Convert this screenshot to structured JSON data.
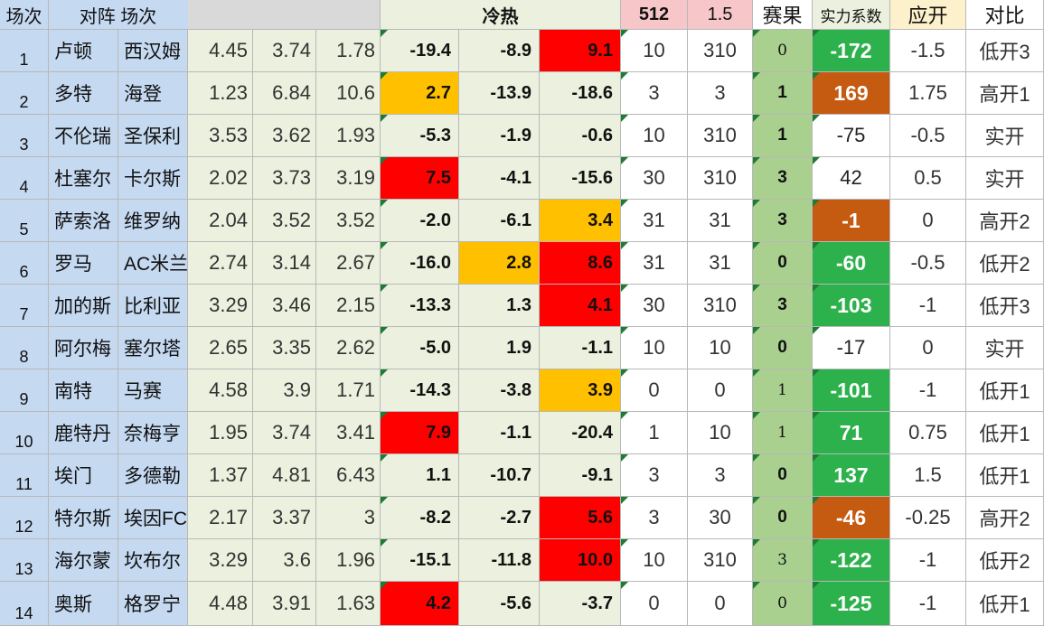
{
  "header": {
    "idx": "场次",
    "match": "对阵 场次",
    "heat": "冷热",
    "c512": "512",
    "c15": "1.5",
    "result": "赛果",
    "power": "实力系数",
    "should": "应开",
    "compare": "对比"
  },
  "colors": {
    "blue": "#c5d9f1",
    "green_light": "#ebf1de",
    "gray": "#d9d9d9",
    "pink": "#f7c6c8",
    "header_yellow": "#fdf1cc",
    "red": "#ff0000",
    "orange": "#ffc000",
    "result_green": "#a9d08e",
    "power_green": "#2db14c",
    "power_brown": "#c55a11"
  },
  "rows": [
    {
      "idx": "1",
      "home": "卢顿",
      "away": "西汉姆",
      "o1": "4.45",
      "o2": "3.74",
      "o3": "1.78",
      "h1": "-19.4",
      "h2": "-8.9",
      "h3": "9.1",
      "h1c": "none",
      "h2c": "none",
      "h3c": "red",
      "v512": "10",
      "v15": "310",
      "res": "0",
      "resSerif": true,
      "power": "-172",
      "pc": "green",
      "should": "-1.5",
      "cmp": "低开3"
    },
    {
      "idx": "2",
      "home": "多特",
      "away": "海登",
      "o1": "1.23",
      "o2": "6.84",
      "o3": "10.6",
      "h1": "2.7",
      "h2": "-13.9",
      "h3": "-18.6",
      "h1c": "orange",
      "h2c": "none",
      "h3c": "none",
      "v512": "3",
      "v15": "3",
      "res": "1",
      "resSerif": false,
      "power": "169",
      "pc": "brown",
      "should": "1.75",
      "cmp": "高开1"
    },
    {
      "idx": "3",
      "home": "不伦瑞",
      "away": "圣保利",
      "o1": "3.53",
      "o2": "3.62",
      "o3": "1.93",
      "h1": "-5.3",
      "h2": "-1.9",
      "h3": "-0.6",
      "h1c": "none",
      "h2c": "none",
      "h3c": "none",
      "v512": "10",
      "v15": "310",
      "res": "1",
      "resSerif": false,
      "power": "-75",
      "pc": "none",
      "should": "-0.5",
      "cmp": "实开"
    },
    {
      "idx": "4",
      "home": "杜塞尔",
      "away": "卡尔斯",
      "o1": "2.02",
      "o2": "3.73",
      "o3": "3.19",
      "h1": "7.5",
      "h2": "-4.1",
      "h3": "-15.6",
      "h1c": "red",
      "h2c": "none",
      "h3c": "none",
      "v512": "30",
      "v15": "310",
      "res": "3",
      "resSerif": false,
      "power": "42",
      "pc": "none",
      "should": "0.5",
      "cmp": "实开"
    },
    {
      "idx": "5",
      "home": "萨索洛",
      "away": "维罗纳",
      "o1": "2.04",
      "o2": "3.52",
      "o3": "3.52",
      "h1": "-2.0",
      "h2": "-6.1",
      "h3": "3.4",
      "h1c": "none",
      "h2c": "none",
      "h3c": "orange",
      "v512": "31",
      "v15": "31",
      "res": "3",
      "resSerif": false,
      "power": "-1",
      "pc": "brown",
      "should": "0",
      "cmp": "高开2"
    },
    {
      "idx": "6",
      "home": "罗马",
      "away": "AC米兰",
      "o1": "2.74",
      "o2": "3.14",
      "o3": "2.67",
      "h1": "-16.0",
      "h2": "2.8",
      "h3": "8.6",
      "h1c": "none",
      "h2c": "orange",
      "h3c": "red",
      "v512": "31",
      "v15": "31",
      "res": "0",
      "resSerif": false,
      "power": "-60",
      "pc": "green",
      "should": "-0.5",
      "cmp": "低开2"
    },
    {
      "idx": "7",
      "home": "加的斯",
      "away": "比利亚",
      "o1": "3.29",
      "o2": "3.46",
      "o3": "2.15",
      "h1": "-13.3",
      "h2": "1.3",
      "h3": "4.1",
      "h1c": "none",
      "h2c": "none",
      "h3c": "red",
      "v512": "30",
      "v15": "310",
      "res": "3",
      "resSerif": false,
      "power": "-103",
      "pc": "green",
      "should": "-1",
      "cmp": "低开3"
    },
    {
      "idx": "8",
      "home": "阿尔梅",
      "away": "塞尔塔",
      "o1": "2.65",
      "o2": "3.35",
      "o3": "2.62",
      "h1": "-5.0",
      "h2": "1.9",
      "h3": "-1.1",
      "h1c": "none",
      "h2c": "none",
      "h3c": "none",
      "v512": "10",
      "v15": "10",
      "res": "0",
      "resSerif": false,
      "power": "-17",
      "pc": "none",
      "should": "0",
      "cmp": "实开"
    },
    {
      "idx": "9",
      "home": "南特",
      "away": "马赛",
      "o1": "4.58",
      "o2": "3.9",
      "o3": "1.71",
      "h1": "-14.3",
      "h2": "-3.8",
      "h3": "3.9",
      "h1c": "none",
      "h2c": "none",
      "h3c": "orange",
      "v512": "0",
      "v15": "0",
      "res": "1",
      "resSerif": true,
      "power": "-101",
      "pc": "green",
      "should": "-1",
      "cmp": "低开1"
    },
    {
      "idx": "10",
      "home": "鹿特丹",
      "away": "奈梅亨",
      "o1": "1.95",
      "o2": "3.74",
      "o3": "3.41",
      "h1": "7.9",
      "h2": "-1.1",
      "h3": "-20.4",
      "h1c": "red",
      "h2c": "none",
      "h3c": "none",
      "v512": "1",
      "v15": "10",
      "res": "1",
      "resSerif": true,
      "power": "71",
      "pc": "green",
      "should": "0.75",
      "cmp": "低开1"
    },
    {
      "idx": "11",
      "home": "埃门",
      "away": "多德勒",
      "o1": "1.37",
      "o2": "4.81",
      "o3": "6.43",
      "h1": "1.1",
      "h2": "-10.7",
      "h3": "-9.1",
      "h1c": "none",
      "h2c": "none",
      "h3c": "none",
      "v512": "3",
      "v15": "3",
      "res": "0",
      "resSerif": false,
      "power": "137",
      "pc": "green",
      "should": "1.5",
      "cmp": "低开1"
    },
    {
      "idx": "12",
      "home": "特尔斯",
      "away": "埃因FC",
      "o1": "2.17",
      "o2": "3.37",
      "o3": "3",
      "h1": "-8.2",
      "h2": "-2.7",
      "h3": "5.6",
      "h1c": "none",
      "h2c": "none",
      "h3c": "red",
      "v512": "3",
      "v15": "30",
      "res": "0",
      "resSerif": false,
      "power": "-46",
      "pc": "brown",
      "should": "-0.25",
      "cmp": "高开2"
    },
    {
      "idx": "13",
      "home": "海尔蒙",
      "away": "坎布尔",
      "o1": "3.29",
      "o2": "3.6",
      "o3": "1.96",
      "h1": "-15.1",
      "h2": "-11.8",
      "h3": "10.0",
      "h1c": "none",
      "h2c": "none",
      "h3c": "red",
      "v512": "10",
      "v15": "310",
      "res": "3",
      "resSerif": true,
      "power": "-122",
      "pc": "green",
      "should": "-1",
      "cmp": "低开2"
    },
    {
      "idx": "14",
      "home": "奥斯",
      "away": "格罗宁",
      "o1": "4.48",
      "o2": "3.91",
      "o3": "1.63",
      "h1": "4.2",
      "h2": "-5.6",
      "h3": "-3.7",
      "h1c": "red",
      "h2c": "none",
      "h3c": "none",
      "v512": "0",
      "v15": "0",
      "res": "0",
      "resSerif": true,
      "power": "-125",
      "pc": "green",
      "should": "-1",
      "cmp": "低开1"
    }
  ]
}
